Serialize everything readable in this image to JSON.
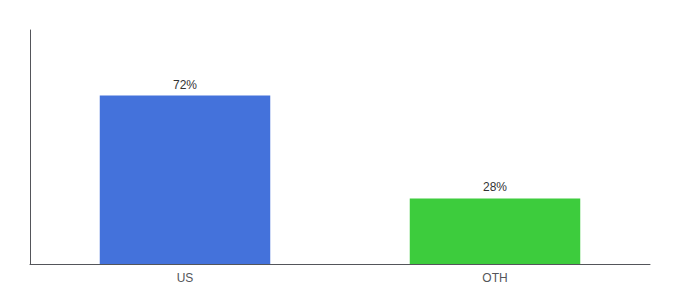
{
  "chart_data": {
    "type": "bar",
    "categories": [
      "US",
      "OTH"
    ],
    "values": [
      72,
      28
    ],
    "value_labels": [
      "72%",
      "28%"
    ],
    "colors": [
      "#4472db",
      "#3dcc3d"
    ],
    "ylim": [
      0,
      100
    ],
    "grid": false,
    "data_labels": true,
    "tick_labels": "x"
  }
}
